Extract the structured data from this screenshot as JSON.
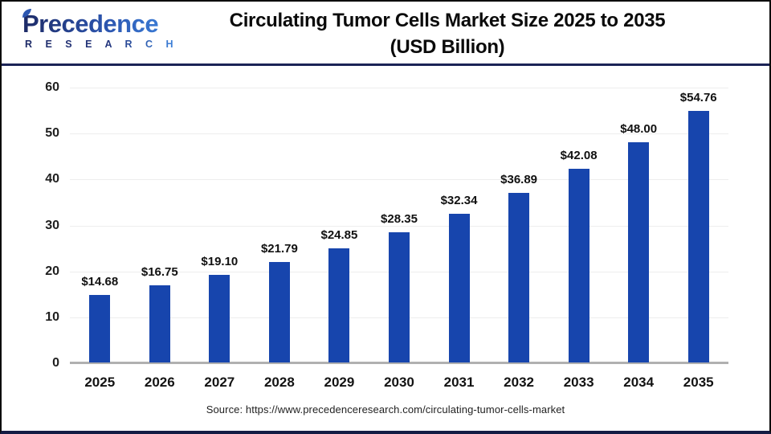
{
  "logo": {
    "word": "Precedence",
    "sub": "R E S E A R C H"
  },
  "header": {
    "title_line1": "Circulating Tumor Cells Market Size 2025 to 2035",
    "title_line2": "(USD Billion)"
  },
  "chart_data": {
    "type": "bar",
    "title": "Circulating Tumor Cells Market Size 2025 to 2035 (USD Billion)",
    "categories": [
      "2025",
      "2026",
      "2027",
      "2028",
      "2029",
      "2030",
      "2031",
      "2032",
      "2033",
      "2034",
      "2035"
    ],
    "values": [
      14.68,
      16.75,
      19.1,
      21.79,
      24.85,
      28.35,
      32.34,
      36.89,
      42.08,
      48.0,
      54.76
    ],
    "data_labels": [
      "$14.68",
      "$16.75",
      "$19.10",
      "$21.79",
      "$24.85",
      "$28.35",
      "$32.34",
      "$36.89",
      "$42.08",
      "$48.00",
      "$54.76"
    ],
    "y_ticks": [
      0,
      10,
      20,
      30,
      40,
      50,
      60
    ],
    "ylim": [
      0,
      60
    ],
    "xlabel": "",
    "ylabel": "",
    "grid": "horizontal",
    "legend": "none",
    "bar_color": "#1745ad"
  },
  "footer": {
    "source": "Source: https://www.precedenceresearch.com/circulating-tumor-cells-market"
  },
  "colors": {
    "bar": "#1745ad",
    "header_divider": "#1b2356",
    "gridline": "#ededed",
    "axis": "#b0b0b0"
  }
}
